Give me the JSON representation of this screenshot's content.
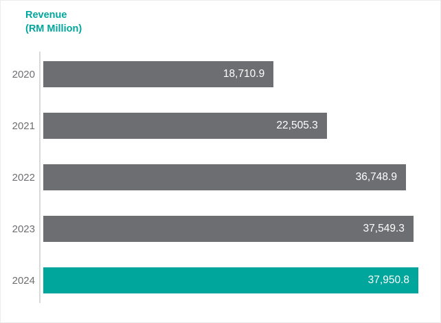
{
  "title": {
    "line1": "Revenue",
    "line2": "(RM Million)"
  },
  "colors": {
    "title": "#00A69C",
    "bar_default": "#6d6e71",
    "bar_highlight": "#00A69C",
    "axis_line": "#d8d9da",
    "year_label": "#6d6e71",
    "value_label": "#ffffff"
  },
  "chart_data": {
    "type": "bar",
    "orientation": "horizontal",
    "title": "Revenue (RM Million)",
    "categories": [
      "2020",
      "2021",
      "2022",
      "2023",
      "2024"
    ],
    "values": [
      18710.9,
      22505.3,
      36748.9,
      37549.3,
      37950.8
    ],
    "value_labels": [
      "18,710.9",
      "22,505.3",
      "36,748.9",
      "37,549.3",
      "37,950.8"
    ],
    "highlight_index": 4,
    "legend": "none",
    "grid": "off",
    "axes": "single vertical baseline at left, no ticks, no gridlines, values labeled inside bar ends",
    "display_width_pct": [
      61.4,
      75.6,
      96.7,
      98.7,
      100
    ]
  }
}
